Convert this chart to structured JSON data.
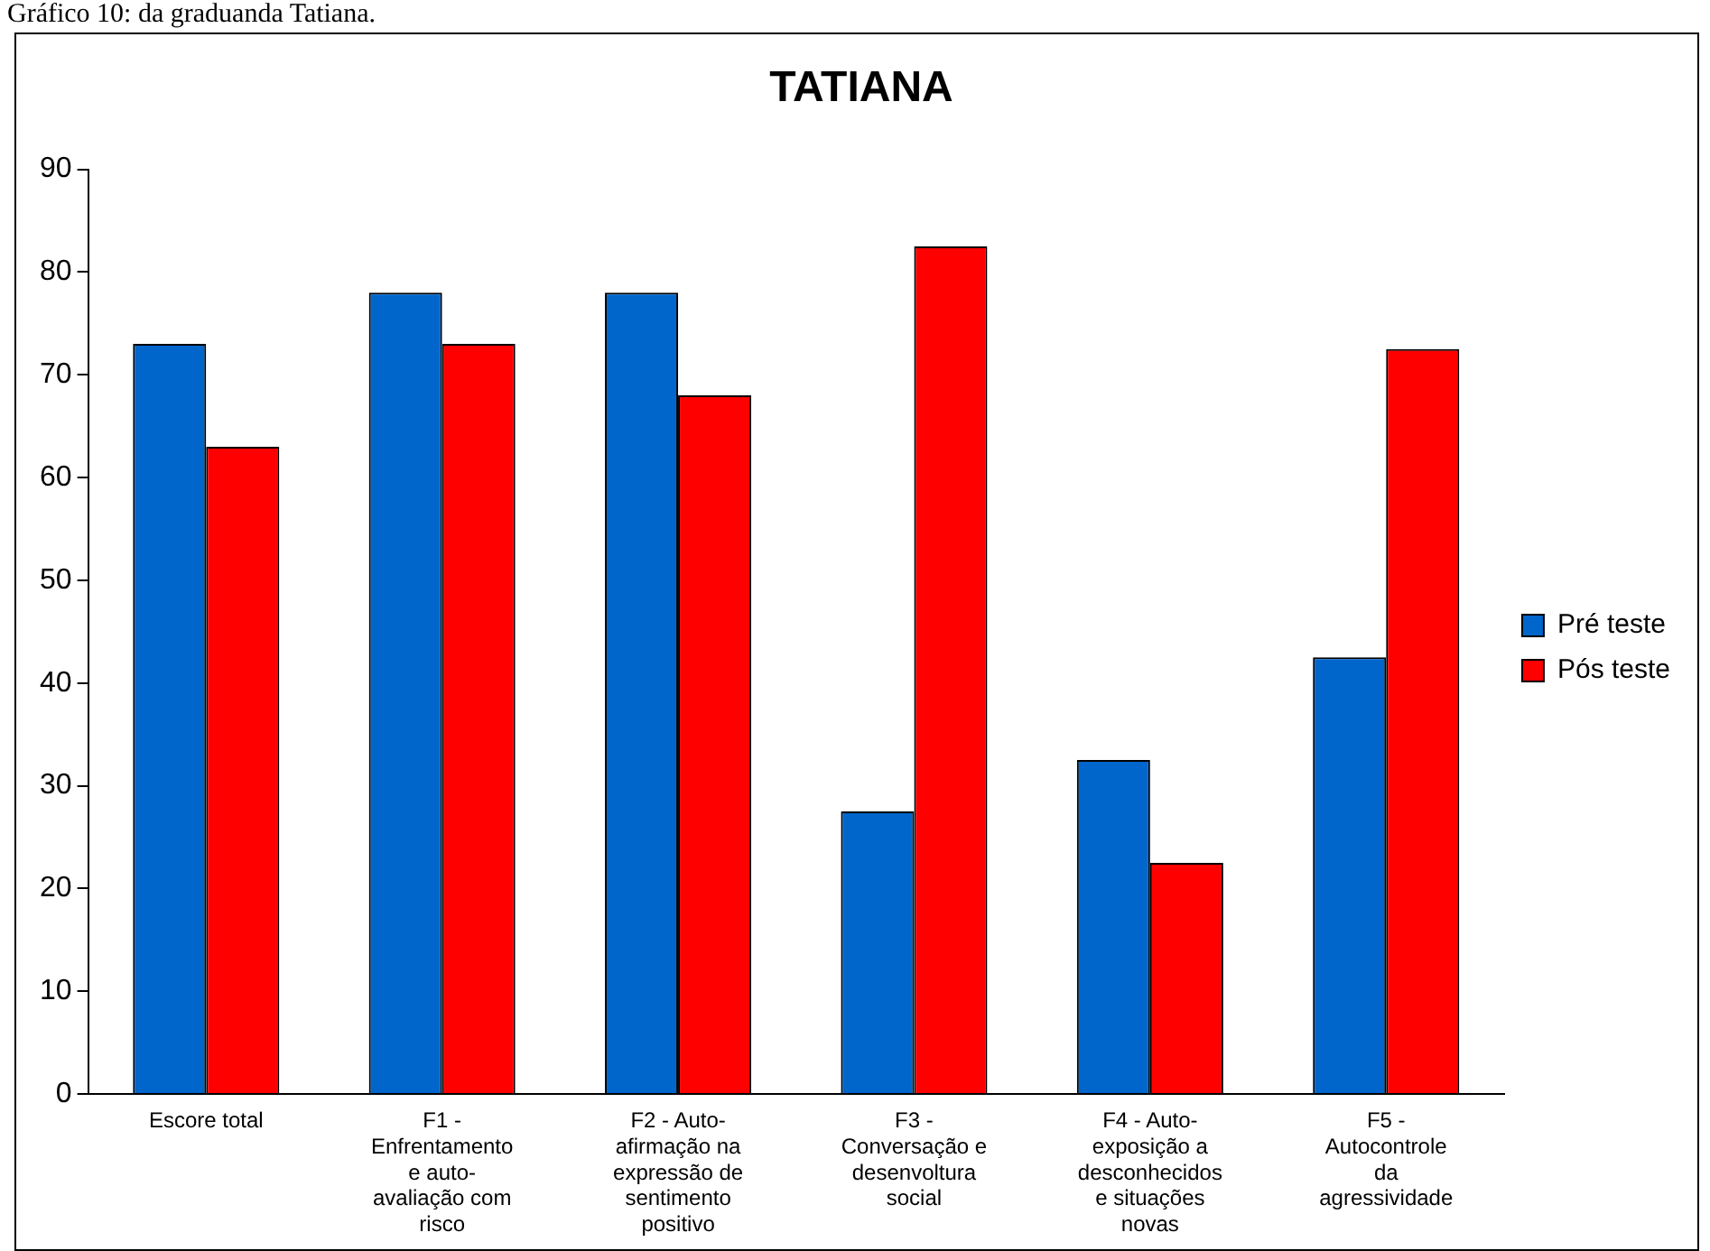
{
  "chart_data": {
    "type": "bar",
    "title": "TATIANA",
    "annotations": [
      "Gráfico 10: da graduanda Tatiana."
    ],
    "categories": [
      "Escore total",
      "F1 - Enfrentamento e auto-avaliação com risco",
      "F2 - Auto-afirmação na expressão de sentimento positivo",
      "F3 - Conversação e desenvoltura social",
      "F4 - Auto-exposição a desconhecidos e situações novas",
      "F5 - Autocontrole da agressividade"
    ],
    "series": [
      {
        "name": "Pré teste",
        "color": "#0066cc",
        "values": [
          73,
          78,
          78,
          27.5,
          32.5,
          42.5
        ]
      },
      {
        "name": "Pós teste",
        "color": "#ff0000",
        "values": [
          63,
          73,
          68,
          82.5,
          22.5,
          72.5
        ]
      }
    ],
    "ylim": [
      0,
      90
    ],
    "yticks": [
      0,
      10,
      20,
      30,
      40,
      50,
      60,
      70,
      80,
      90
    ],
    "grid": false,
    "legend": "right"
  }
}
